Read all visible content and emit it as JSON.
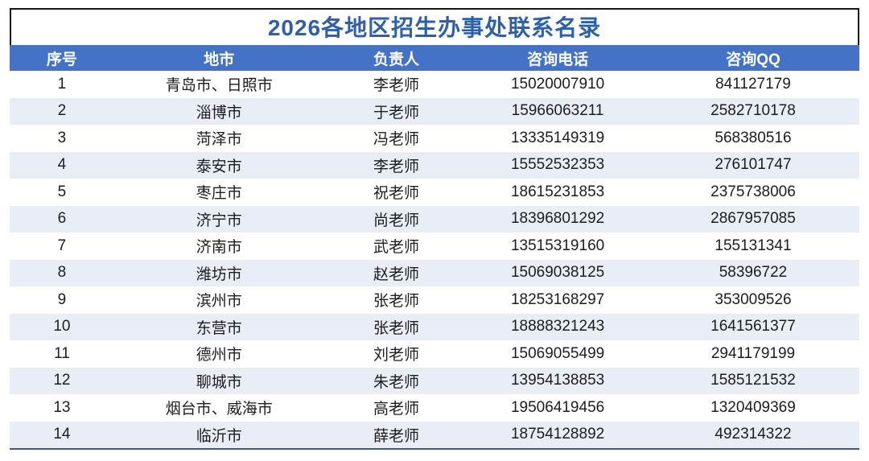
{
  "table": {
    "title": "2026各地区招生办事处联系名录",
    "columns": [
      "序号",
      "地市",
      "负责人",
      "咨询电话",
      "咨询QQ"
    ],
    "rows": [
      {
        "seq": "1",
        "city": "青岛市、日照市",
        "person": "李老师",
        "phone": "15020007910",
        "qq": "841127179"
      },
      {
        "seq": "2",
        "city": "淄博市",
        "person": "于老师",
        "phone": "15966063211",
        "qq": "2582710178"
      },
      {
        "seq": "3",
        "city": "菏泽市",
        "person": "冯老师",
        "phone": "13335149319",
        "qq": "568380516"
      },
      {
        "seq": "4",
        "city": "泰安市",
        "person": "李老师",
        "phone": "15552532353",
        "qq": "276101747"
      },
      {
        "seq": "5",
        "city": "枣庄市",
        "person": "祝老师",
        "phone": "18615231853",
        "qq": "2375738006"
      },
      {
        "seq": "6",
        "city": "济宁市",
        "person": "尚老师",
        "phone": "18396801292",
        "qq": "2867957085"
      },
      {
        "seq": "7",
        "city": "济南市",
        "person": "武老师",
        "phone": "13515319160",
        "qq": "155131341"
      },
      {
        "seq": "8",
        "city": "潍坊市",
        "person": "赵老师",
        "phone": "15069038125",
        "qq": "58396722"
      },
      {
        "seq": "9",
        "city": "滨州市",
        "person": "张老师",
        "phone": "18253168297",
        "qq": "353009526"
      },
      {
        "seq": "10",
        "city": "东营市",
        "person": "张老师",
        "phone": "18888321243",
        "qq": "1641561377"
      },
      {
        "seq": "11",
        "city": "德州市",
        "person": "刘老师",
        "phone": "15069055499",
        "qq": "2941179199"
      },
      {
        "seq": "12",
        "city": "聊城市",
        "person": "朱老师",
        "phone": "13954138853",
        "qq": "1585121532"
      },
      {
        "seq": "13",
        "city": "烟台市、威海市",
        "person": "高老师",
        "phone": "19506419456",
        "qq": "1320409369"
      },
      {
        "seq": "14",
        "city": "临沂市",
        "person": "薛老师",
        "phone": "18754128892",
        "qq": "492314322"
      }
    ]
  },
  "colors": {
    "title_text": "#2e5fa9",
    "title_border": "#161616",
    "header_bg": "#4472c6",
    "header_text": "#ffffff",
    "stripe_bg": "#e9edf6",
    "body_text": "#1d1d1f",
    "bottom_rule": "#3e5a80"
  }
}
